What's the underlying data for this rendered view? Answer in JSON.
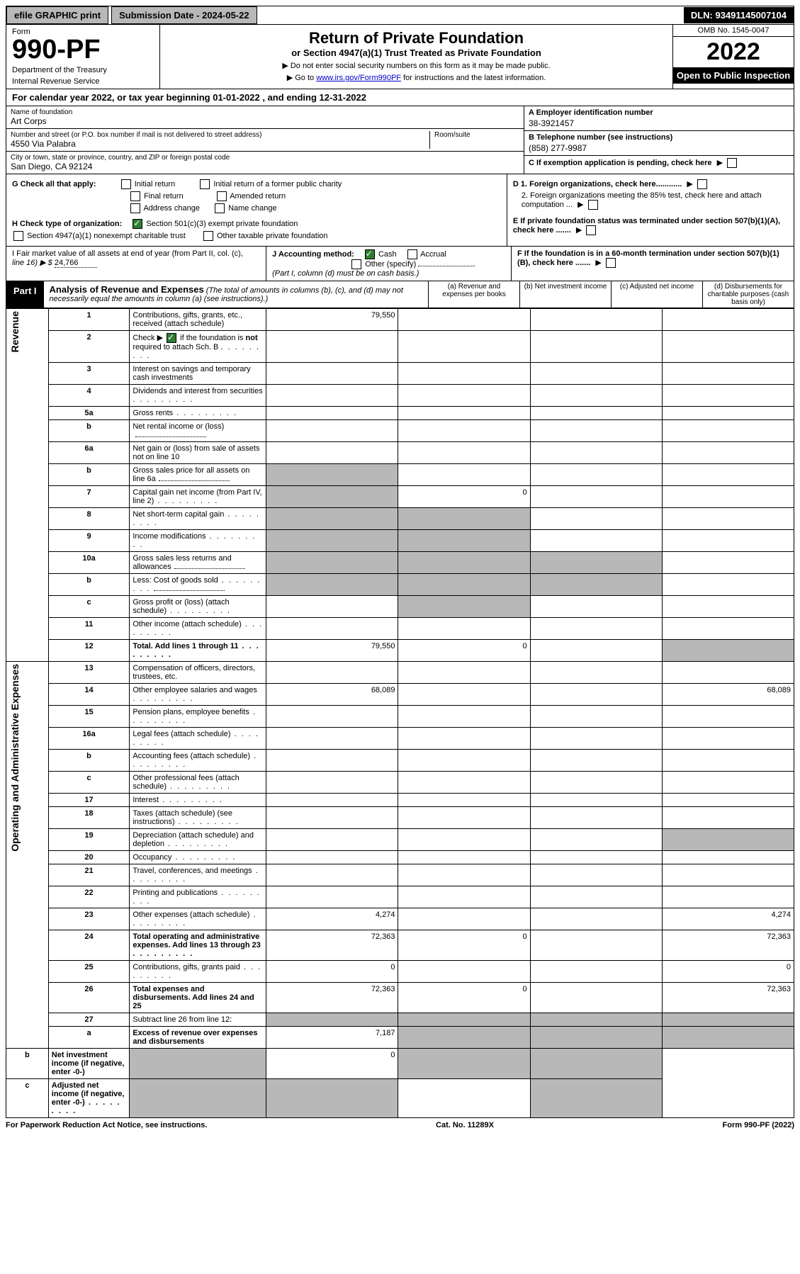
{
  "topbar": {
    "efile": "efile GRAPHIC print",
    "submission": "Submission Date - 2024-05-22",
    "dln": "DLN: 93491145007104"
  },
  "header": {
    "form_label": "Form",
    "form_num": "990-PF",
    "dept1": "Department of the Treasury",
    "dept2": "Internal Revenue Service",
    "title": "Return of Private Foundation",
    "subtitle": "or Section 4947(a)(1) Trust Treated as Private Foundation",
    "note1": "▶ Do not enter social security numbers on this form as it may be made public.",
    "note2_pre": "▶ Go to ",
    "note2_link": "www.irs.gov/Form990PF",
    "note2_post": " for instructions and the latest information.",
    "omb": "OMB No. 1545-0047",
    "year": "2022",
    "open": "Open to Public Inspection"
  },
  "cal_year": "For calendar year 2022, or tax year beginning 01-01-2022                           , and ending 12-31-2022",
  "ident": {
    "name_label": "Name of foundation",
    "name": "Art Corps",
    "addr_label": "Number and street (or P.O. box number if mail is not delivered to street address)",
    "addr": "4550 Via Palabra",
    "room_label": "Room/suite",
    "city_label": "City or town, state or province, country, and ZIP or foreign postal code",
    "city": "San Diego, CA  92124",
    "a_label": "A Employer identification number",
    "a_val": "38-3921457",
    "b_label": "B Telephone number (see instructions)",
    "b_val": "(858) 277-9987",
    "c_label": "C If exemption application is pending, check here"
  },
  "g": {
    "label": "G Check all that apply:",
    "opts": [
      "Initial return",
      "Final return",
      "Address change",
      "Initial return of a former public charity",
      "Amended return",
      "Name change"
    ]
  },
  "h": {
    "label": "H Check type of organization:",
    "o1": "Section 501(c)(3) exempt private foundation",
    "o2": "Section 4947(a)(1) nonexempt charitable trust",
    "o3": "Other taxable private foundation"
  },
  "d": {
    "d1": "D 1. Foreign organizations, check here............",
    "d2": "2. Foreign organizations meeting the 85% test, check here and attach computation ..."
  },
  "e": "E  If private foundation status was terminated under section 507(b)(1)(A), check here .......",
  "i": {
    "line1": "I Fair market value of all assets at end of year (from Part II, col. (c),",
    "line2": "line 16) ▶ $  ",
    "val": "24,766"
  },
  "j": {
    "label": "J Accounting method:",
    "cash": "Cash",
    "accrual": "Accrual",
    "other": "Other (specify)",
    "note": "(Part I, column (d) must be on cash basis.)"
  },
  "f": "F  If the foundation is in a 60-month termination under section 507(b)(1)(B), check here .......",
  "part1": {
    "tag": "Part I",
    "title": "Analysis of Revenue and Expenses",
    "title_note": " (The total of amounts in columns (b), (c), and (d) may not necessarily equal the amounts in column (a) (see instructions).)",
    "cols": [
      "(a)   Revenue and expenses per books",
      "(b)   Net investment income",
      "(c)   Adjusted net income",
      "(d)  Disbursements for charitable purposes (cash basis only)"
    ]
  },
  "sections": {
    "revenue": "Revenue",
    "expenses": "Operating and Administrative Expenses"
  },
  "rows": [
    {
      "n": "1",
      "d": "Contributions, gifts, grants, etc., received (attach schedule)",
      "a": "79,550"
    },
    {
      "n": "2",
      "d": "Check ▶ ☑ if the foundation is not required to attach Sch. B",
      "dots": true,
      "inline_check": true,
      "not_bold": "not"
    },
    {
      "n": "3",
      "d": "Interest on savings and temporary cash investments"
    },
    {
      "n": "4",
      "d": "Dividends and interest from securities",
      "dots": true
    },
    {
      "n": "5a",
      "d": "Gross rents",
      "dots": true
    },
    {
      "n": "b",
      "d": "Net rental income or (loss)",
      "underline": true
    },
    {
      "n": "6a",
      "d": "Net gain or (loss) from sale of assets not on line 10"
    },
    {
      "n": "b",
      "d": "Gross sales price for all assets on line 6a",
      "underline": true,
      "shade_a": true
    },
    {
      "n": "7",
      "d": "Capital gain net income (from Part IV, line 2)",
      "dots": true,
      "shade_a": true,
      "b": "0"
    },
    {
      "n": "8",
      "d": "Net short-term capital gain",
      "dots": true,
      "shade_a": true,
      "shade_b": true
    },
    {
      "n": "9",
      "d": "Income modifications",
      "dots": true,
      "shade_a": true,
      "shade_b": true
    },
    {
      "n": "10a",
      "d": "Gross sales less returns and allowances",
      "underline": true,
      "shade_a": true,
      "shade_b": true,
      "shade_c": true
    },
    {
      "n": "b",
      "d": "Less: Cost of goods sold",
      "dots": true,
      "underline": true,
      "shade_a": true,
      "shade_b": true,
      "shade_c": true
    },
    {
      "n": "c",
      "d": "Gross profit or (loss) (attach schedule)",
      "dots": true,
      "shade_b": true
    },
    {
      "n": "11",
      "d": "Other income (attach schedule)",
      "dots": true
    },
    {
      "n": "12",
      "d": "Total. Add lines 1 through 11",
      "dots": true,
      "bold": true,
      "a": "79,550",
      "b": "0",
      "shade_d": true
    },
    {
      "n": "13",
      "d": "Compensation of officers, directors, trustees, etc."
    },
    {
      "n": "14",
      "d": "Other employee salaries and wages",
      "dots": true,
      "a": "68,089",
      "dd": "68,089"
    },
    {
      "n": "15",
      "d": "Pension plans, employee benefits",
      "dots": true
    },
    {
      "n": "16a",
      "d": "Legal fees (attach schedule)",
      "dots": true
    },
    {
      "n": "b",
      "d": "Accounting fees (attach schedule)",
      "dots": true
    },
    {
      "n": "c",
      "d": "Other professional fees (attach schedule)",
      "dots": true
    },
    {
      "n": "17",
      "d": "Interest",
      "dots": true
    },
    {
      "n": "18",
      "d": "Taxes (attach schedule) (see instructions)",
      "dots": true
    },
    {
      "n": "19",
      "d": "Depreciation (attach schedule) and depletion",
      "dots": true,
      "shade_d": true
    },
    {
      "n": "20",
      "d": "Occupancy",
      "dots": true
    },
    {
      "n": "21",
      "d": "Travel, conferences, and meetings",
      "dots": true
    },
    {
      "n": "22",
      "d": "Printing and publications",
      "dots": true
    },
    {
      "n": "23",
      "d": "Other expenses (attach schedule)",
      "dots": true,
      "a": "4,274",
      "dd": "4,274"
    },
    {
      "n": "24",
      "d": "Total operating and administrative expenses. Add lines 13 through 23",
      "dots": true,
      "bold": true,
      "a": "72,363",
      "b": "0",
      "dd": "72,363"
    },
    {
      "n": "25",
      "d": "Contributions, gifts, grants paid",
      "dots": true,
      "a": "0",
      "dd": "0"
    },
    {
      "n": "26",
      "d": "Total expenses and disbursements. Add lines 24 and 25",
      "bold": true,
      "a": "72,363",
      "b": "0",
      "dd": "72,363"
    },
    {
      "n": "27",
      "d": "Subtract line 26 from line 12:",
      "shade_a": true,
      "shade_b": true,
      "shade_c": true,
      "shade_d": true
    },
    {
      "n": "a",
      "d": "Excess of revenue over expenses and disbursements",
      "bold": true,
      "a": "7,187",
      "shade_b": true,
      "shade_c": true,
      "shade_d": true
    },
    {
      "n": "b",
      "d": "Net investment income (if negative, enter -0-)",
      "bold": true,
      "shade_a": true,
      "b": "0",
      "shade_c": true,
      "shade_d": true
    },
    {
      "n": "c",
      "d": "Adjusted net income (if negative, enter -0-)",
      "dots": true,
      "bold": true,
      "shade_a": true,
      "shade_b": true,
      "shade_d": true
    }
  ],
  "footer": {
    "left": "For Paperwork Reduction Act Notice, see instructions.",
    "mid": "Cat. No. 11289X",
    "right": "Form 990-PF (2022)"
  }
}
